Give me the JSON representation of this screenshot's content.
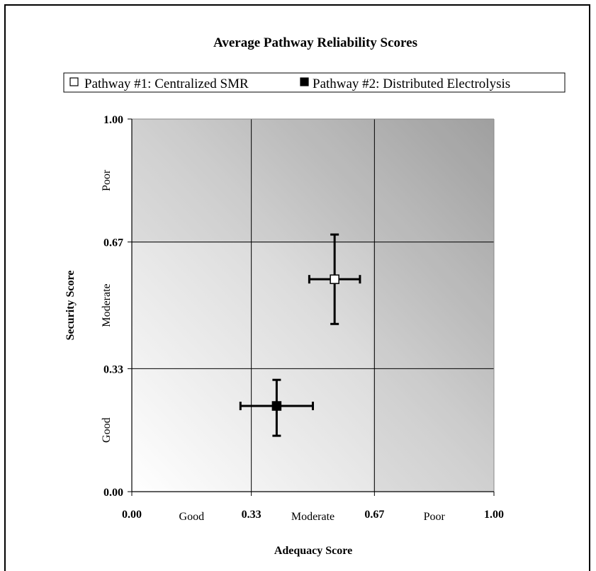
{
  "chart_data": {
    "type": "scatter",
    "title": "Average Pathway Reliability Scores",
    "xlabel": "Adequacy Score",
    "ylabel": "Security Score",
    "xlim": [
      0,
      1
    ],
    "ylim": [
      0,
      1
    ],
    "x_ticks": [
      0,
      0.33,
      0.67,
      1
    ],
    "y_ticks": [
      0,
      0.33,
      0.67,
      1
    ],
    "x_tick_labels": [
      "0.00",
      "0.33",
      "0.67",
      "1.00"
    ],
    "y_tick_labels": [
      "0.00",
      "0.33",
      "0.67",
      "1.00"
    ],
    "x_band_labels": [
      "Good",
      "Moderate",
      "Poor"
    ],
    "y_band_labels": [
      "Good",
      "Moderate",
      "Poor"
    ],
    "grid": true,
    "legend_position": "top",
    "series": [
      {
        "name": "Pathway #1: Centralized SMR",
        "marker": "hollow-square",
        "color": "#ffffff",
        "x": 0.56,
        "y": 0.57,
        "x_err": [
          0.49,
          0.63
        ],
        "y_err": [
          0.45,
          0.69
        ]
      },
      {
        "name": "Pathway #2: Distributed Electrolysis",
        "marker": "filled-square",
        "color": "#000000",
        "x": 0.4,
        "y": 0.23,
        "x_err": [
          0.3,
          0.5
        ],
        "y_err": [
          0.15,
          0.3
        ]
      }
    ]
  }
}
